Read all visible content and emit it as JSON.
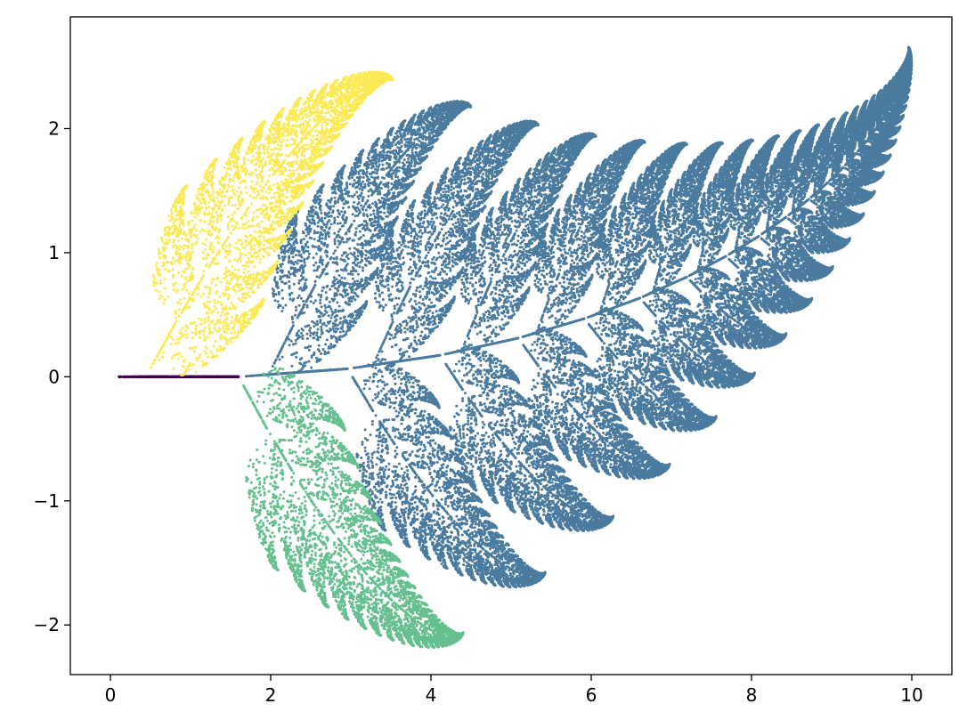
{
  "chart_data": {
    "type": "scatter",
    "title": "",
    "xlabel": "",
    "ylabel": "",
    "xlim": [
      -0.5,
      10.5
    ],
    "ylim": [
      -2.4,
      2.9
    ],
    "xticks": [
      0,
      2,
      4,
      6,
      8,
      10
    ],
    "yticks": [
      -2,
      -1,
      0,
      1,
      2
    ],
    "xtick_labels": [
      "0",
      "2",
      "4",
      "6",
      "8",
      "10"
    ],
    "ytick_labels": [
      "−2",
      "−1",
      "0",
      "1",
      "2"
    ],
    "grid": false,
    "legend": "none",
    "ifs": {
      "start": [
        0,
        0
      ],
      "maps": [
        {
          "a": 0.0,
          "b": 0.0,
          "c": 0.0,
          "d": 0.16,
          "e": 0.0,
          "f": 0.0,
          "p": 0.01
        },
        {
          "a": 0.85,
          "b": 0.04,
          "c": -0.04,
          "d": 0.85,
          "e": 0.0,
          "f": 1.6,
          "p": 0.85
        },
        {
          "a": 0.2,
          "b": -0.26,
          "c": 0.23,
          "d": 0.22,
          "e": 0.0,
          "f": 1.6,
          "p": 0.07
        },
        {
          "a": -0.15,
          "b": 0.28,
          "c": 0.26,
          "d": 0.24,
          "e": 0.0,
          "f": 0.44,
          "p": 0.07
        }
      ]
    },
    "series": [
      {
        "map": 0,
        "color": "#440154",
        "marker": "point"
      },
      {
        "map": 1,
        "color": "#4a7a9e",
        "marker": "point"
      },
      {
        "map": 2,
        "color": "#66bf8e",
        "marker": "point"
      },
      {
        "map": 3,
        "color": "#fbe955",
        "marker": "point"
      }
    ]
  }
}
